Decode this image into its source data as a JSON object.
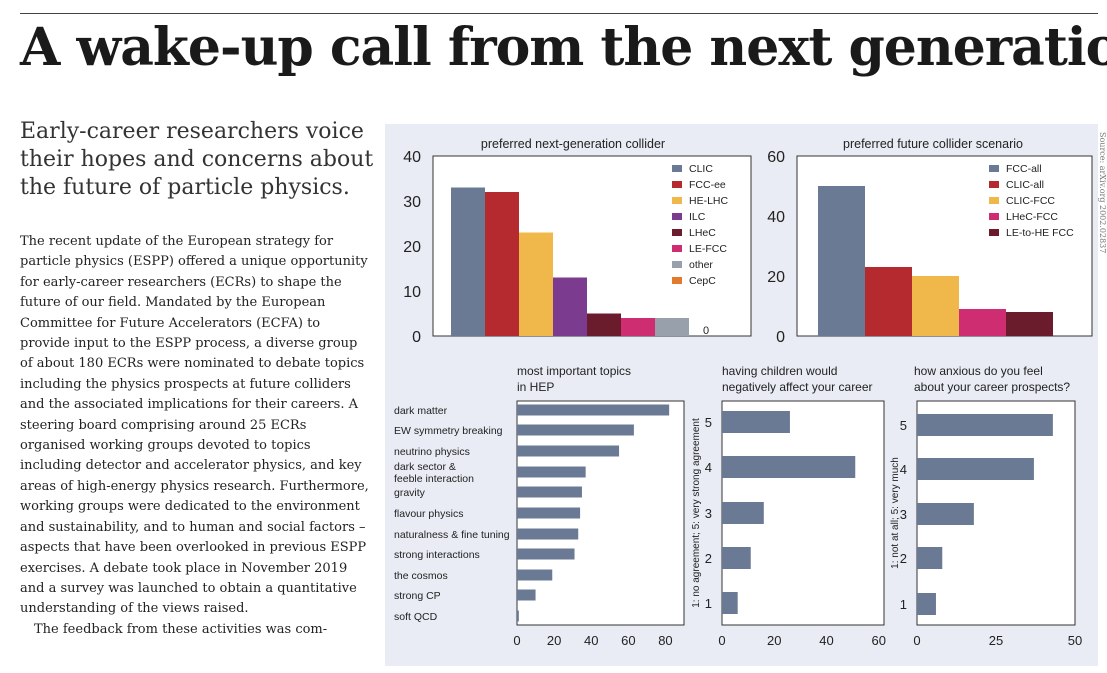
{
  "headline": "A wake-up call from the next generation",
  "standfirst": "Early-career researchers voice their hopes and concerns about the future of particle physics.",
  "paragraphs": [
    "The recent update of the European strategy for particle physics (ESPP) offered a unique opportunity for early-career researchers (ECRs) to shape the future of our field. Mandated by the European Committee for Future Accelerators (ECFA) to provide input to the ESPP process, a diverse group of about 180 ECRs were nominated to debate topics including the physics prospects at future colliders and the associated implications for their careers. A steering board comprising around 25 ECRs organised working groups devoted to topics including detector and accelerator physics, and key areas of high-energy physics research. Furthermore, working groups were dedicated to the environment and sustainability, and to human and social factors – aspects that have been overlooked in previous ESPP exercises. A debate took place in November 2019 and a survey was launched to obtain a quantitative understanding of the views raised.",
    "The feedback from these activities was com-"
  ],
  "source_note": "Source: arXiv.org 2002.02837",
  "colors": {
    "slate": "#6b7a94",
    "crimson": "#b52a2e",
    "gold": "#f0b84a",
    "purple": "#7b3c8f",
    "maroon": "#6a1c2c",
    "pink": "#cf2d72",
    "gray": "#98a0ac",
    "orange": "#e37a2b",
    "panel": "#e9ecf4"
  },
  "chart_data": [
    {
      "type": "bar",
      "title": "preferred next-generation collider",
      "categories": [
        "CLIC",
        "FCC-ee",
        "HE-LHC",
        "ILC",
        "LHeC",
        "LE-FCC",
        "other",
        "CepC"
      ],
      "values": [
        33,
        32,
        23,
        13,
        5,
        4,
        4,
        0
      ],
      "colors": [
        "#6b7a94",
        "#b52a2e",
        "#f0b84a",
        "#7b3c8f",
        "#6a1c2c",
        "#cf2d72",
        "#98a0ac",
        "#e37a2b"
      ],
      "value_labels": [
        "",
        "",
        "",
        "",
        "",
        "",
        "",
        "0"
      ],
      "ylim": [
        0,
        40
      ],
      "yticks": [
        0,
        10,
        20,
        30,
        40
      ],
      "legend": "top-right"
    },
    {
      "type": "bar",
      "title": "preferred future collider scenario",
      "categories": [
        "FCC-all",
        "CLIC-all",
        "CLIC-FCC",
        "LHeC-FCC",
        "LE-to-HE FCC"
      ],
      "values": [
        50,
        23,
        20,
        9,
        8
      ],
      "colors": [
        "#6b7a94",
        "#b52a2e",
        "#f0b84a",
        "#cf2d72",
        "#6a1c2c"
      ],
      "ylim": [
        0,
        60
      ],
      "yticks": [
        0,
        20,
        40,
        60
      ],
      "legend": "top-right"
    },
    {
      "type": "bar",
      "orientation": "horizontal",
      "title": "most important topics in HEP",
      "title_lines": [
        "most important topics",
        "in HEP"
      ],
      "categories": [
        "dark matter",
        "EW symmetry breaking",
        "neutrino physics",
        "dark sector & feeble interaction",
        "gravity",
        "flavour physics",
        "naturalness & fine tuning",
        "strong interactions",
        "the cosmos",
        "strong CP",
        "soft QCD"
      ],
      "category_lines": [
        [
          "dark matter"
        ],
        [
          "EW symmetry breaking"
        ],
        [
          "neutrino physics"
        ],
        [
          "dark sector &",
          "feeble interaction"
        ],
        [
          "gravity"
        ],
        [
          "flavour physics"
        ],
        [
          "naturalness & fine tuning"
        ],
        [
          "strong interactions"
        ],
        [
          "the cosmos"
        ],
        [
          "strong CP"
        ],
        [
          "soft QCD"
        ]
      ],
      "values": [
        82,
        63,
        55,
        37,
        35,
        34,
        33,
        31,
        19,
        10,
        1
      ],
      "xlim": [
        0,
        90
      ],
      "xticks": [
        0,
        20,
        40,
        60,
        80
      ],
      "color": "#6b7a94"
    },
    {
      "type": "bar",
      "orientation": "horizontal",
      "title": "having children would negatively affect your career",
      "title_lines": [
        "having children would",
        "negatively affect your career"
      ],
      "ylabel": "1: no agreement; 5: very strong agreement",
      "categories": [
        "5",
        "4",
        "3",
        "2",
        "1"
      ],
      "values": [
        26,
        51,
        16,
        11,
        6
      ],
      "xlim": [
        0,
        62
      ],
      "xticks": [
        0,
        20,
        40,
        60
      ],
      "color": "#6b7a94"
    },
    {
      "type": "bar",
      "orientation": "horizontal",
      "title": "how anxious do you feel about your career prospects?",
      "title_lines": [
        "how anxious do you feel",
        "about your career prospects?"
      ],
      "ylabel": "1: not at all; 5: very much",
      "categories": [
        "5",
        "4",
        "3",
        "2",
        "1"
      ],
      "values": [
        43,
        37,
        18,
        8,
        6
      ],
      "xlim": [
        0,
        50
      ],
      "xticks": [
        0,
        25,
        50
      ],
      "color": "#6b7a94"
    }
  ]
}
